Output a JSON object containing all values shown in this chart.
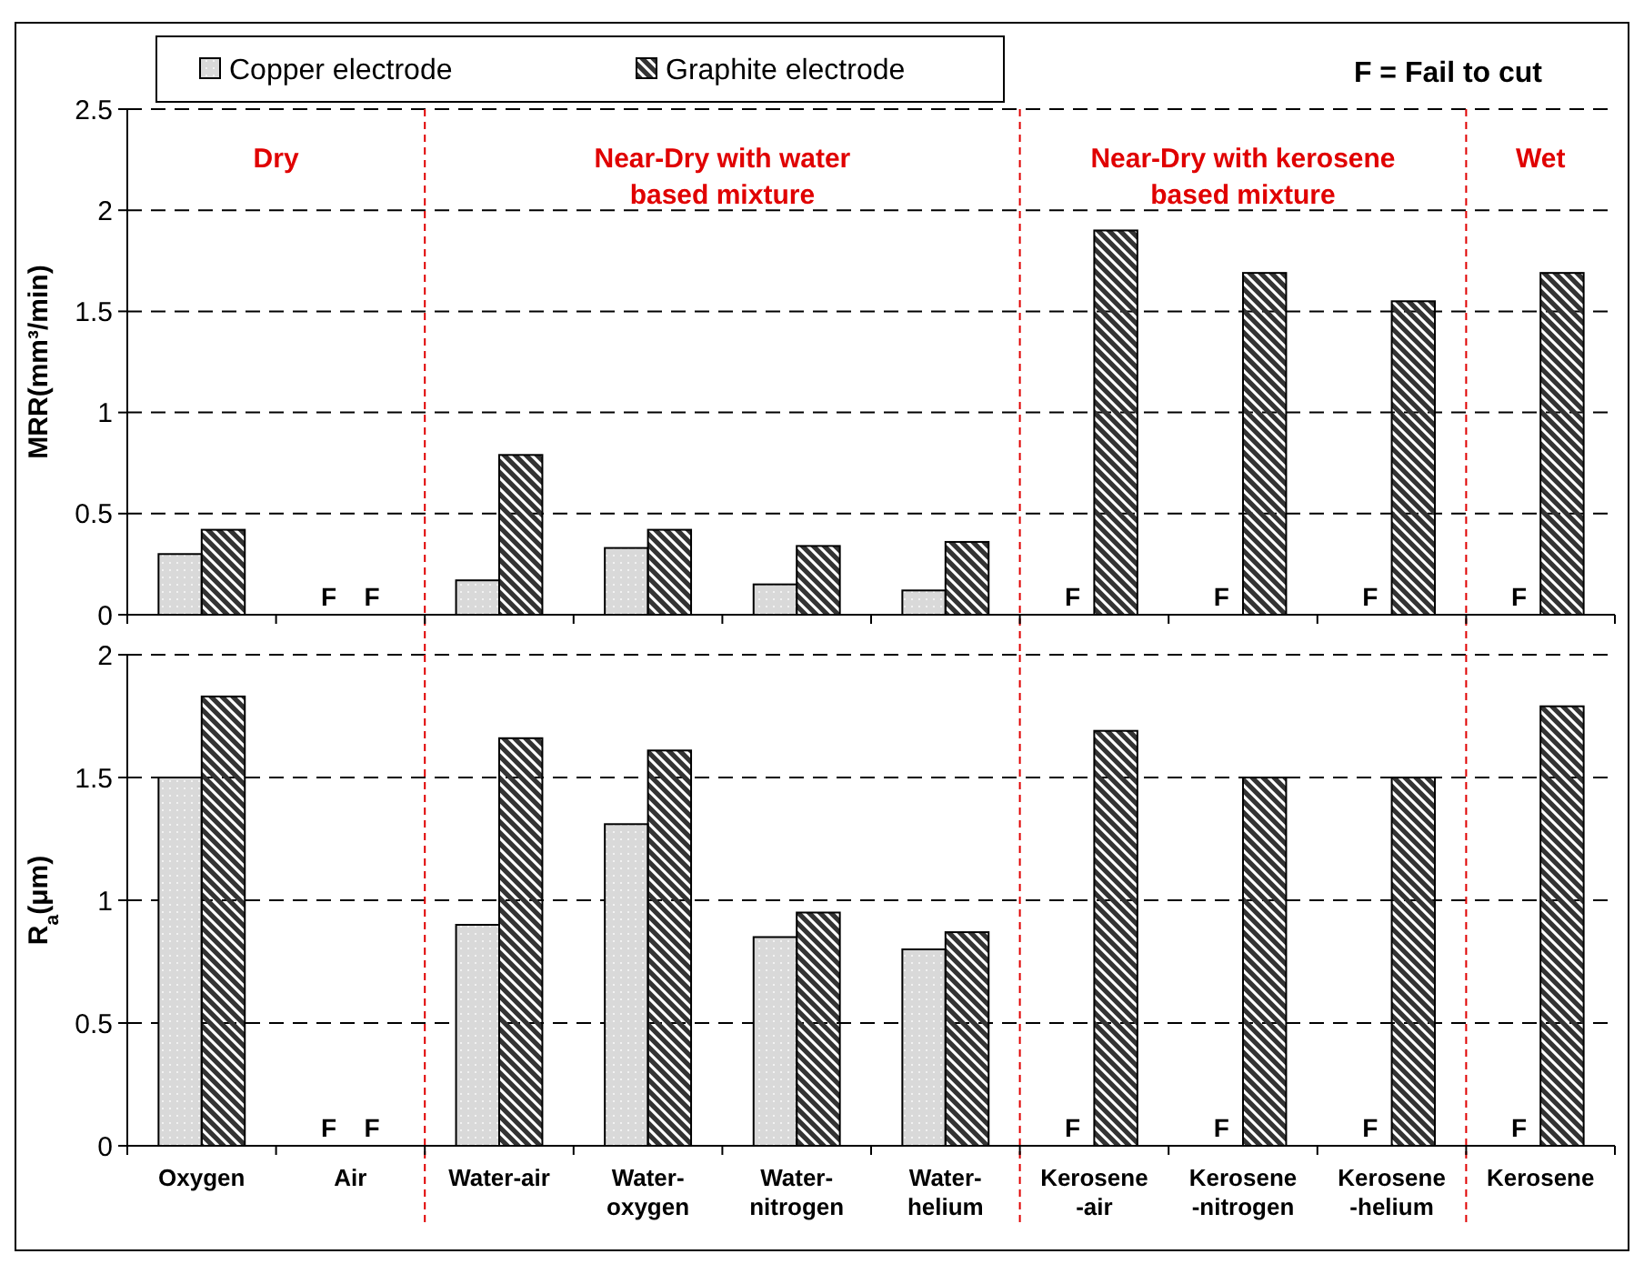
{
  "chart_data": [
    {
      "type": "bar",
      "categories": [
        null,
        null,
        null,
        null,
        null,
        null,
        null,
        null,
        null,
        null
      ],
      "series": [
        {
          "name": "Copper electrode",
          "color": "#d9d9d9",
          "values": [
            0.3,
            null,
            0.17,
            0.33,
            0.15,
            0.12,
            null,
            null,
            null,
            null
          ],
          "value_labels": [
            null,
            "F",
            null,
            null,
            null,
            null,
            "F",
            "F",
            "F",
            "F"
          ]
        },
        {
          "name": "Graphite electrode",
          "color": "#333333",
          "values": [
            0.42,
            null,
            0.79,
            0.42,
            0.34,
            0.36,
            1.9,
            1.69,
            1.55,
            1.69
          ],
          "value_labels": [
            null,
            "F",
            null,
            null,
            null,
            null,
            null,
            null,
            null,
            null
          ]
        }
      ],
      "ylabel": "MRR(mm³/min)",
      "ylim": [
        0,
        2.5
      ],
      "yticks": [
        0,
        0.5,
        1,
        1.5,
        2,
        2.5
      ],
      "grid": "y",
      "legend": "top left",
      "tick_labels": "y",
      "annotations": [
        "F = Fail to cut",
        "Dry",
        "Near-Dry with water\nbased mixture",
        "Near-Dry with kerosene\nbased mixture",
        "Wet"
      ]
    },
    {
      "type": "bar",
      "categories": [
        "Oxygen",
        "Air",
        "Water-air",
        "Water-\noxygen",
        "Water-\nnitrogen",
        "Water-\nhelium",
        "Kerosene\n-air",
        "Kerosene\n-nitrogen",
        "Kerosene\n-helium",
        "Kerosene"
      ],
      "series": [
        {
          "color": "#d9d9d9",
          "values": [
            1.5,
            null,
            0.9,
            1.31,
            0.85,
            0.8,
            null,
            null,
            null,
            null
          ],
          "value_labels": [
            null,
            "F",
            null,
            null,
            null,
            null,
            "F",
            "F",
            "F",
            "F"
          ]
        },
        {
          "color": "#333333",
          "values": [
            1.83,
            null,
            1.66,
            1.61,
            0.95,
            0.87,
            1.69,
            1.5,
            1.5,
            1.79
          ],
          "value_labels": [
            null,
            "F",
            null,
            null,
            null,
            null,
            null,
            null,
            null,
            null
          ]
        }
      ],
      "ylabel": "R$_{a}$(μm)",
      "ylim": [
        0,
        2
      ],
      "yticks": [
        0,
        0.5,
        1,
        1.5,
        2
      ],
      "grid": "y"
    }
  ]
}
